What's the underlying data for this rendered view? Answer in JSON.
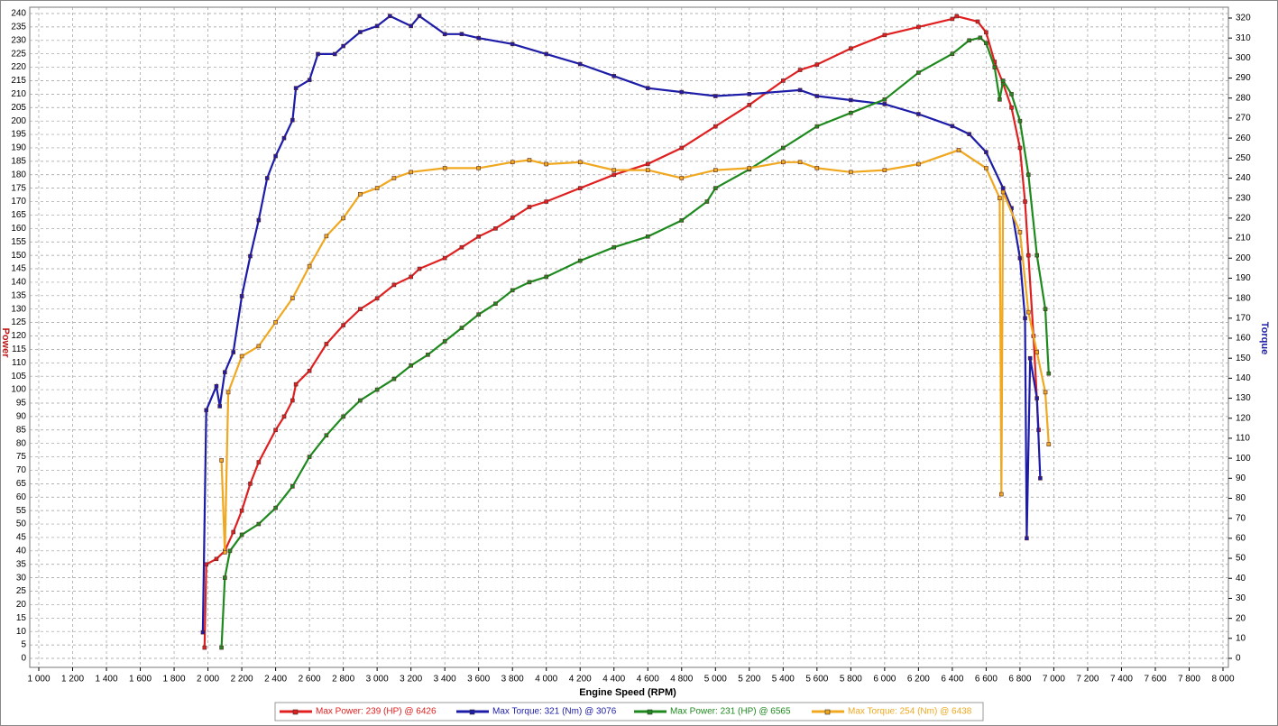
{
  "chart_data": {
    "type": "line",
    "xlabel": "Engine Speed (RPM)",
    "ylabel": "Power",
    "y2label": "Torque",
    "xlim": [
      1000,
      8000
    ],
    "ylim": [
      0,
      240
    ],
    "y2lim": [
      0,
      320
    ],
    "grid": true,
    "xticks": [
      {
        "value": 1000,
        "label": "1 000"
      },
      {
        "value": 1200,
        "label": "1 200"
      },
      {
        "value": 1400,
        "label": "1 400"
      },
      {
        "value": 1600,
        "label": "1 600"
      },
      {
        "value": 1800,
        "label": "1 800"
      },
      {
        "value": 2000,
        "label": "2 000"
      },
      {
        "value": 2200,
        "label": "2 200"
      },
      {
        "value": 2400,
        "label": "2 400"
      },
      {
        "value": 2600,
        "label": "2 600"
      },
      {
        "value": 2800,
        "label": "2 800"
      },
      {
        "value": 3000,
        "label": "3 000"
      },
      {
        "value": 3200,
        "label": "3 200"
      },
      {
        "value": 3400,
        "label": "3 400"
      },
      {
        "value": 3600,
        "label": "3 600"
      },
      {
        "value": 3800,
        "label": "3 800"
      },
      {
        "value": 4000,
        "label": "4 000"
      },
      {
        "value": 4200,
        "label": "4 200"
      },
      {
        "value": 4400,
        "label": "4 400"
      },
      {
        "value": 4600,
        "label": "4 600"
      },
      {
        "value": 4800,
        "label": "4 800"
      },
      {
        "value": 5000,
        "label": "5 000"
      },
      {
        "value": 5200,
        "label": "5 200"
      },
      {
        "value": 5400,
        "label": "5 400"
      },
      {
        "value": 5600,
        "label": "5 600"
      },
      {
        "value": 5800,
        "label": "5 800"
      },
      {
        "value": 6000,
        "label": "6 000"
      },
      {
        "value": 6200,
        "label": "6 200"
      },
      {
        "value": 6400,
        "label": "6 400"
      },
      {
        "value": 6600,
        "label": "6 600"
      },
      {
        "value": 6800,
        "label": "6 800"
      },
      {
        "value": 7000,
        "label": "7 000"
      },
      {
        "value": 7200,
        "label": "7 200"
      },
      {
        "value": 7400,
        "label": "7 400"
      },
      {
        "value": 7600,
        "label": "7 600"
      },
      {
        "value": 7800,
        "label": "7 800"
      },
      {
        "value": 8000,
        "label": "8 000"
      }
    ],
    "yticks": [
      0,
      5,
      10,
      15,
      20,
      25,
      30,
      35,
      40,
      45,
      50,
      55,
      60,
      65,
      70,
      75,
      80,
      85,
      90,
      95,
      100,
      105,
      110,
      115,
      120,
      125,
      130,
      135,
      140,
      145,
      150,
      155,
      160,
      165,
      170,
      175,
      180,
      185,
      190,
      195,
      200,
      205,
      210,
      215,
      220,
      225,
      230,
      235,
      240
    ],
    "y2ticks": [
      0,
      10,
      20,
      30,
      40,
      50,
      60,
      70,
      80,
      90,
      100,
      110,
      120,
      130,
      140,
      150,
      160,
      170,
      180,
      190,
      200,
      210,
      220,
      230,
      240,
      250,
      260,
      270,
      280,
      290,
      300,
      310,
      320
    ],
    "series": [
      {
        "name": "Max Power: 239 (HP) @ 6426",
        "color": "#e02020",
        "axis": "y",
        "x": [
          1980,
          1990,
          2050,
          2100,
          2150,
          2200,
          2250,
          2300,
          2400,
          2450,
          2500,
          2520,
          2600,
          2700,
          2800,
          2900,
          3000,
          3100,
          3200,
          3250,
          3400,
          3500,
          3600,
          3700,
          3800,
          3900,
          4000,
          4200,
          4400,
          4600,
          4800,
          5000,
          5200,
          5400,
          5500,
          5600,
          5800,
          6000,
          6200,
          6400,
          6426,
          6550,
          6600,
          6650,
          6700,
          6750,
          6800,
          6830,
          6850,
          6880,
          6910
        ],
        "values": [
          4,
          35,
          37,
          40,
          47,
          55,
          65,
          73,
          85,
          90,
          96,
          102,
          107,
          117,
          124,
          130,
          134,
          139,
          142,
          145,
          149,
          153,
          157,
          160,
          164,
          168,
          170,
          175,
          180,
          184,
          190,
          198,
          206,
          215,
          219,
          221,
          227,
          232,
          235,
          238,
          239,
          237,
          233,
          222,
          214,
          205,
          190,
          170,
          150,
          120,
          85
        ]
      },
      {
        "name": "Max Torque: 321 (Nm) @ 3076",
        "color": "#1c1ca8",
        "axis": "y2",
        "x": [
          1970,
          1990,
          2050,
          2070,
          2100,
          2150,
          2200,
          2250,
          2300,
          2350,
          2400,
          2450,
          2500,
          2520,
          2600,
          2650,
          2750,
          2800,
          2900,
          3000,
          3076,
          3200,
          3250,
          3400,
          3500,
          3600,
          3800,
          4000,
          4200,
          4400,
          4600,
          4800,
          5000,
          5200,
          5500,
          5600,
          5800,
          6000,
          6200,
          6400,
          6500,
          6600,
          6700,
          6750,
          6800,
          6830,
          6840,
          6860,
          6900,
          6920
        ],
        "values": [
          13,
          124,
          136,
          126,
          143,
          153,
          181,
          201,
          219,
          240,
          251,
          260,
          269,
          285,
          289,
          302,
          302,
          306,
          313,
          316,
          321,
          316,
          321,
          312,
          312,
          310,
          307,
          302,
          297,
          291,
          285,
          283,
          281,
          282,
          284,
          281,
          279,
          277,
          272,
          266,
          262,
          253,
          235,
          225,
          200,
          170,
          60,
          150,
          130,
          90
        ]
      },
      {
        "name": "Max Power: 231 (HP) @ 6565",
        "color": "#1e8a1e",
        "axis": "y",
        "x": [
          2080,
          2100,
          2130,
          2200,
          2300,
          2400,
          2500,
          2600,
          2700,
          2800,
          2900,
          3000,
          3100,
          3200,
          3300,
          3400,
          3500,
          3600,
          3700,
          3800,
          3900,
          4000,
          4200,
          4400,
          4600,
          4800,
          4950,
          5000,
          5200,
          5400,
          5600,
          5800,
          6000,
          6200,
          6400,
          6500,
          6565,
          6600,
          6650,
          6680,
          6700,
          6750,
          6800,
          6850,
          6900,
          6950,
          6970
        ],
        "values": [
          4,
          30,
          40,
          46,
          50,
          56,
          64,
          75,
          83,
          90,
          96,
          100,
          104,
          109,
          113,
          118,
          123,
          128,
          132,
          137,
          140,
          142,
          148,
          153,
          157,
          163,
          170,
          175,
          182,
          190,
          198,
          203,
          208,
          218,
          225,
          230,
          231,
          229,
          220,
          208,
          215,
          210,
          200,
          180,
          150,
          130,
          106
        ]
      },
      {
        "name": "Max Torque: 254 (Nm) @ 6438",
        "color": "#f0a820",
        "axis": "y2",
        "x": [
          2080,
          2100,
          2120,
          2200,
          2300,
          2400,
          2500,
          2600,
          2700,
          2800,
          2900,
          3000,
          3100,
          3200,
          3400,
          3600,
          3800,
          3900,
          4000,
          4200,
          4400,
          4600,
          4800,
          5000,
          5200,
          5400,
          5500,
          5600,
          5800,
          6000,
          6200,
          6438,
          6600,
          6680,
          6690,
          6700,
          6800,
          6850,
          6900,
          6950,
          6970
        ],
        "values": [
          99,
          53,
          133,
          151,
          156,
          168,
          180,
          196,
          211,
          220,
          232,
          235,
          240,
          243,
          245,
          245,
          248,
          249,
          247,
          248,
          244,
          244,
          240,
          244,
          245,
          248,
          248,
          245,
          243,
          244,
          247,
          254,
          245,
          230,
          82,
          233,
          213,
          173,
          153,
          133,
          107
        ]
      }
    ]
  }
}
